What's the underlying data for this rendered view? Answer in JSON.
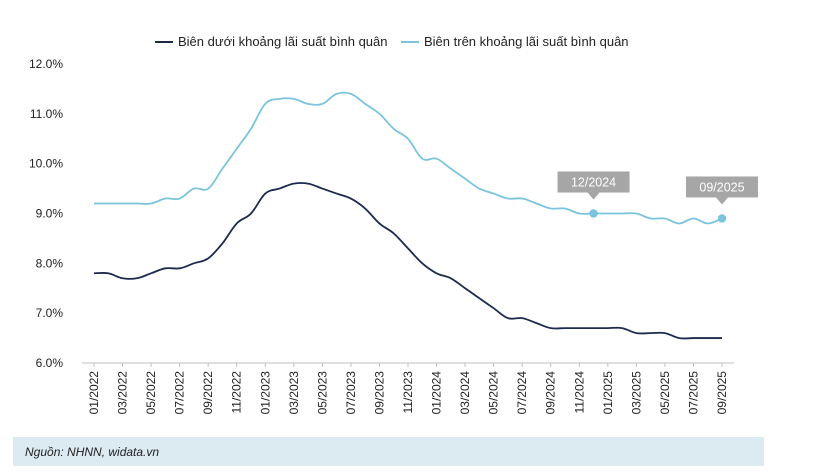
{
  "chart_data": {
    "type": "line",
    "colors": {
      "lower": "#1c2a4e",
      "upper": "#7ac4dc",
      "callout": "#a6a6a6"
    },
    "x": [
      "01/2022",
      "02/2022",
      "03/2022",
      "04/2022",
      "05/2022",
      "06/2022",
      "07/2022",
      "08/2022",
      "09/2022",
      "10/2022",
      "11/2022",
      "12/2022",
      "01/2023",
      "02/2023",
      "03/2023",
      "04/2023",
      "05/2023",
      "06/2023",
      "07/2023",
      "08/2023",
      "09/2023",
      "10/2023",
      "11/2023",
      "12/2023",
      "01/2024",
      "02/2024",
      "03/2024",
      "04/2024",
      "05/2024",
      "06/2024",
      "07/2024",
      "08/2024",
      "09/2024",
      "10/2024",
      "11/2024",
      "12/2024",
      "01/2025",
      "02/2025",
      "03/2025",
      "04/2025",
      "05/2025",
      "06/2025",
      "07/2025",
      "08/2025",
      "09/2025"
    ],
    "xticks": [
      "01/2022",
      "03/2022",
      "05/2022",
      "07/2022",
      "09/2022",
      "11/2022",
      "01/2023",
      "03/2023",
      "05/2023",
      "07/2023",
      "09/2023",
      "11/2023",
      "01/2024",
      "03/2024",
      "05/2024",
      "07/2024",
      "09/2024",
      "11/2024",
      "01/2025",
      "03/2025",
      "05/2025",
      "07/2025",
      "09/2025"
    ],
    "yticks": [
      "6.0%",
      "7.0%",
      "8.0%",
      "9.0%",
      "10.0%",
      "11.0%",
      "12.0%"
    ],
    "ylim": [
      6.0,
      12.0
    ],
    "series": [
      {
        "key": "lower",
        "name": "Biên dưới khoảng lãi suất bình quân",
        "values": [
          7.8,
          7.8,
          7.7,
          7.7,
          7.8,
          7.9,
          7.9,
          8.0,
          8.1,
          8.4,
          8.8,
          9.0,
          9.4,
          9.5,
          9.6,
          9.6,
          9.5,
          9.4,
          9.3,
          9.1,
          8.8,
          8.6,
          8.3,
          8.0,
          7.8,
          7.7,
          7.5,
          7.3,
          7.1,
          6.9,
          6.9,
          6.8,
          6.7,
          6.7,
          6.7,
          6.7,
          6.7,
          6.7,
          6.6,
          6.6,
          6.6,
          6.5,
          6.5,
          6.5,
          6.5
        ]
      },
      {
        "key": "upper",
        "name": "Biên trên khoảng lãi suất bình quân",
        "values": [
          9.2,
          9.2,
          9.2,
          9.2,
          9.2,
          9.3,
          9.3,
          9.5,
          9.5,
          9.9,
          10.3,
          10.7,
          11.2,
          11.3,
          11.3,
          11.2,
          11.2,
          11.4,
          11.4,
          11.2,
          11.0,
          10.7,
          10.5,
          10.1,
          10.1,
          9.9,
          9.7,
          9.5,
          9.4,
          9.3,
          9.3,
          9.2,
          9.1,
          9.1,
          9.0,
          9.0,
          9.0,
          9.0,
          9.0,
          8.9,
          8.9,
          8.8,
          8.9,
          8.8,
          8.9
        ]
      }
    ],
    "annotations": [
      {
        "label": "12/2024",
        "x": "12/2024",
        "y": 9.0
      },
      {
        "label": "09/2025",
        "x": "09/2025",
        "y": 8.9
      }
    ]
  },
  "footer": {
    "source": "Nguồn: NHNN, widata.vn"
  }
}
